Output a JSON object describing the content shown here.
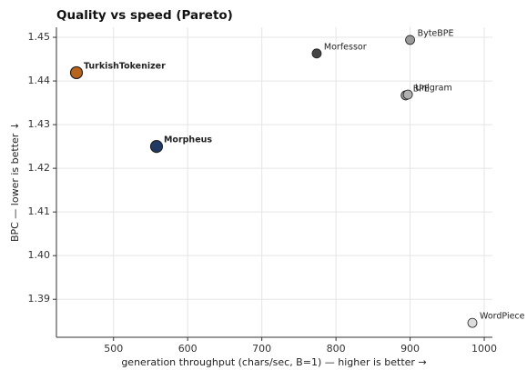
{
  "chart_data": {
    "type": "scatter",
    "title": "Quality vs speed (Pareto)",
    "xlabel": "generation throughput (chars/sec, B=1) — higher is better →",
    "ylabel": "BPC — lower is better ↓",
    "labels": [
      "TurkishTokenizer",
      "Morpheus",
      "Morfessor",
      "ByteBPE",
      "BPE",
      "Unigram",
      "WordPiece"
    ],
    "x": [
      450,
      558,
      774,
      900,
      894,
      897,
      984
    ],
    "values": [
      1.4419,
      1.425,
      1.4463,
      1.4494,
      1.4367,
      1.4369,
      1.3846
    ],
    "colors": [
      "#b8641c",
      "#1f3a64",
      "#444444",
      "#9a9a9a",
      "#9a9a9a",
      "#b0b0b0",
      "#dddddd"
    ],
    "highlighted": [
      true,
      true,
      false,
      false,
      false,
      false,
      false
    ],
    "xlim": [
      423,
      1011
    ],
    "xticks": [
      500,
      600,
      700,
      800,
      900,
      1000
    ],
    "ylim": [
      1.3813,
      1.4523
    ],
    "yticks": [
      {
        "value": 1.39,
        "label": "1.39"
      },
      {
        "value": 1.4,
        "label": "1.40"
      },
      1.41,
      1.42,
      1.43,
      1.44,
      1.45
    ],
    "grid": true
  }
}
